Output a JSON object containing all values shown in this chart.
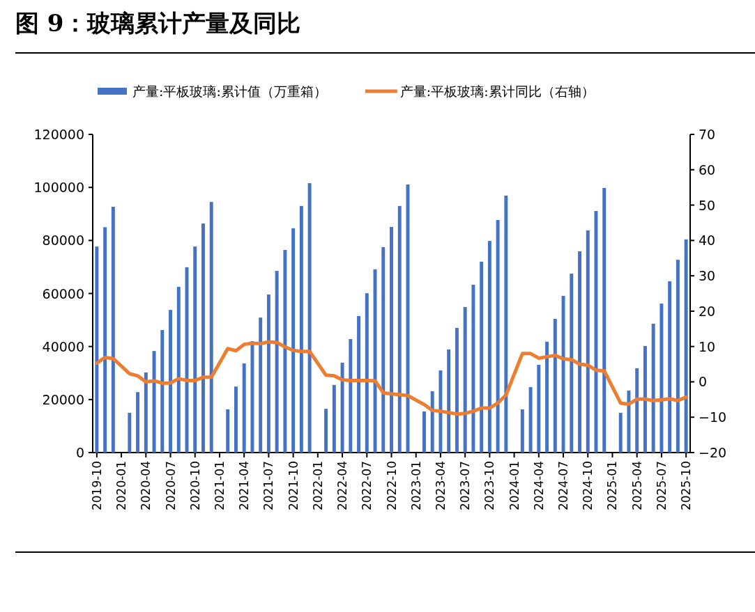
{
  "chart_data": {
    "type": "bar",
    "title": "图 9：玻璃累计产量及同比",
    "categories": [
      "2019-10",
      null,
      null,
      "2020-01",
      null,
      null,
      "2020-04",
      null,
      null,
      "2020-07",
      null,
      null,
      "2020-10",
      null,
      null,
      "2021-01",
      null,
      null,
      "2021-04",
      null,
      null,
      "2021-07",
      null,
      null,
      "2021-10",
      null,
      null,
      "2022-01",
      null,
      null,
      "2022-04",
      null,
      null,
      "2022-07",
      null,
      null,
      "2022-10",
      null,
      null,
      "2023-01",
      null,
      null,
      "2023-04",
      null,
      null,
      "2023-07",
      null,
      null,
      "2023-10",
      null,
      null,
      "2024-01",
      null,
      null,
      "2024-04",
      null,
      null,
      "2024-07",
      null,
      null,
      "2024-10",
      null,
      null,
      "2025-01",
      null,
      null,
      "2025-04",
      null,
      null,
      "2025-07",
      null,
      null,
      "2025-10"
    ],
    "series": [
      {
        "name": "产量:平板玻璃:累计值（万重箱）",
        "color": "#4472c4",
        "values": [
          77700,
          85000,
          92700,
          null,
          15000,
          22800,
          30200,
          38300,
          46200,
          53800,
          62500,
          69900,
          77700,
          86400,
          94500,
          null,
          16300,
          24900,
          33600,
          42000,
          50900,
          59600,
          68500,
          76400,
          84600,
          93000,
          101600,
          null,
          16500,
          25500,
          33900,
          42800,
          51500,
          60100,
          69100,
          77500,
          85100,
          93000,
          101100,
          null,
          15500,
          23100,
          31000,
          38900,
          47000,
          54900,
          63300,
          72000,
          79800,
          87700,
          96900,
          null,
          16300,
          24700,
          33100,
          41800,
          50400,
          59100,
          67500,
          75900,
          83800,
          91100,
          99800,
          null,
          15000,
          23400,
          31800,
          40200,
          48600,
          56200,
          64600,
          72700,
          80400
        ]
      },
      {
        "name": "产量:平板玻璃:累计同比（右轴）",
        "type": "line",
        "axis": "y2",
        "color": "#ed7d31",
        "values": [
          5.3,
          6.9,
          6.6,
          null,
          2.3,
          1.7,
          0,
          0.3,
          -0.4,
          -0.3,
          0.9,
          0.4,
          0.4,
          1.3,
          1.3,
          null,
          9.4,
          8.8,
          10.6,
          10.9,
          10.8,
          11.3,
          11.1,
          9.9,
          8.9,
          8.6,
          8.6,
          null,
          1.9,
          1.7,
          0.6,
          0.4,
          0.4,
          0.4,
          0.3,
          -3.1,
          -3.4,
          -3.6,
          -3.9,
          null,
          -6.4,
          -8.1,
          -8.3,
          -8.7,
          -9.1,
          -8.9,
          -8.3,
          -7.4,
          -7.4,
          -6.0,
          -3.7,
          null,
          8.0,
          8.0,
          6.7,
          7.1,
          7.5,
          6.5,
          6.3,
          5.0,
          4.7,
          3.3,
          3.1,
          null,
          -6.0,
          -6.3,
          -4.9,
          -4.9,
          -5.3,
          -5.1,
          -4.8,
          -5.3,
          -4.3
        ]
      }
    ],
    "ylim": [
      0,
      120000
    ],
    "yticks": [
      0,
      20000,
      40000,
      60000,
      80000,
      100000,
      120000
    ],
    "y2lim": [
      -20,
      70
    ],
    "y2ticks": [
      -20,
      -10,
      0,
      10,
      20,
      30,
      40,
      50,
      60,
      70
    ],
    "legend": "top",
    "grid": false
  }
}
